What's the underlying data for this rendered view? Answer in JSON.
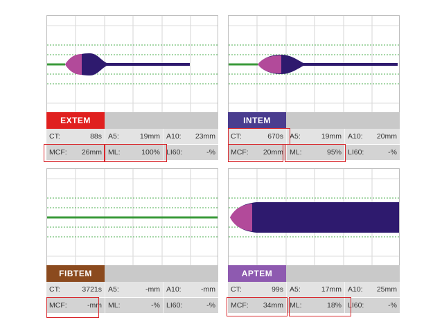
{
  "colors": {
    "trace_body": "#2e1a6e",
    "trace_tip": "#b24a9a",
    "flat_line": "#3a9a3a",
    "grid_dotted": "#4caf50",
    "highlight_box": "#d8262b"
  },
  "chart_data": [
    {
      "type": "area",
      "panel": "EXTEM",
      "tab_color": "#e0201f",
      "trace": "firm clot with rapid lysis (tail)",
      "series": [
        {
          "ct_label": "CT:",
          "ct": "88s",
          "a5": "19mm",
          "a10": "23mm",
          "mcf": "26mm",
          "ml": "100%",
          "li60": "-%"
        }
      ],
      "amplitude_scale": 0.19,
      "highlighted": [
        "MCF",
        "ML"
      ]
    },
    {
      "type": "area",
      "panel": "INTEM",
      "tab_color": "#4a3d8f",
      "trace": "firm clot with lysis (tail)",
      "series": [
        {
          "ct_label": "CT:",
          "ct": "670s",
          "a5": "19mm",
          "a10": "20mm",
          "mcf": "20mm",
          "ml": "95%",
          "li60": "-%"
        }
      ],
      "amplitude_scale": 0.17,
      "highlighted": [
        "CT",
        "MCF",
        "ML"
      ]
    },
    {
      "type": "line",
      "panel": "FIBTEM",
      "tab_color": "#8b4a1e",
      "trace": "flat line",
      "series": [
        {
          "ct_label": "CT:",
          "ct": "3721s",
          "a5": "-mm",
          "a10": "-mm",
          "mcf": "-mm",
          "ml": "-%",
          "li60": "-%"
        }
      ],
      "amplitude_scale": 0,
      "highlighted": [
        "MCF"
      ]
    },
    {
      "type": "area",
      "panel": "APTEM",
      "tab_color": "#8e5ab0",
      "trace": "firm clot sustained",
      "series": [
        {
          "ct_label": "CT:",
          "ct": "99s",
          "a5": "17mm",
          "a10": "25mm",
          "mcf": "34mm",
          "ml": "18%",
          "li60": "-%"
        }
      ],
      "amplitude_scale": 0.34,
      "highlighted": [
        "MCF",
        "ML"
      ]
    }
  ],
  "labels": {
    "a5": "A5:",
    "a10": "A10:",
    "mcf": "MCF:",
    "ml": "ML:",
    "li60": "LI60:"
  },
  "panels": {
    "extem": {
      "name": "EXTEM",
      "ct": "88s",
      "a5": "19mm",
      "a10": "23mm",
      "mcf": "26mm",
      "ml": "100%",
      "li60": "-%"
    },
    "intem": {
      "name": "INTEM",
      "ct": "670s",
      "a5": "19mm",
      "a10": "20mm",
      "mcf": "20mm",
      "ml": "95%",
      "li60": "-%"
    },
    "fibtem": {
      "name": "FIBTEM",
      "ct": "3721s",
      "a5": "-mm",
      "a10": "-mm",
      "mcf": "-mm",
      "ml": "-%",
      "li60": "-%"
    },
    "aptem": {
      "name": "APTEM",
      "ct": "99s",
      "a5": "17mm",
      "a10": "25mm",
      "mcf": "34mm",
      "ml": "18%",
      "li60": "-%"
    }
  },
  "ct_label": "CT:"
}
